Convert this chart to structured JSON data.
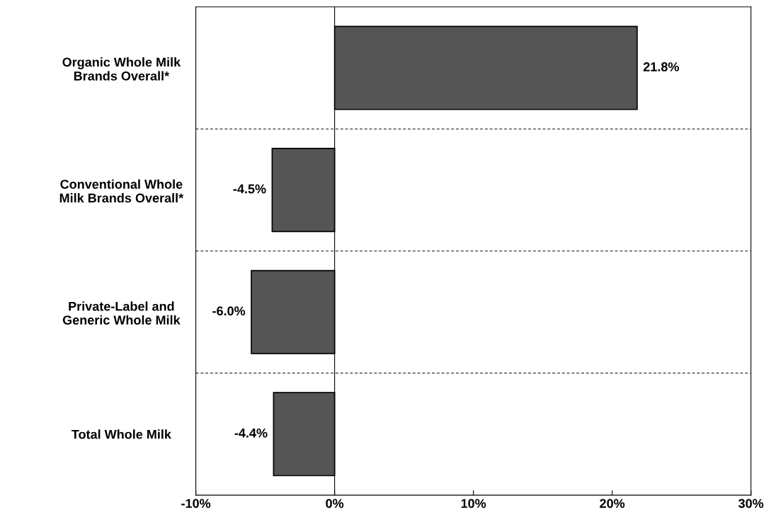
{
  "chart_data": {
    "type": "bar",
    "orientation": "horizontal",
    "categories": [
      "Organic Whole Milk\nBrands Overall*",
      "Conventional Whole\nMilk Brands Overall*",
      "Private-Label and\nGeneric Whole Milk",
      "Total Whole Milk"
    ],
    "values": [
      21.8,
      -4.5,
      -6.0,
      -4.4
    ],
    "value_labels": [
      "21.8%",
      "-4.5%",
      "-6.0%",
      "-4.4%"
    ],
    "color": "#555555",
    "xlim": [
      -10,
      30
    ],
    "xticks": [
      {
        "value": -10,
        "label": "-10%"
      },
      {
        "value": 0,
        "label": "0%"
      },
      {
        "value": 10,
        "label": "10%"
      },
      {
        "value": 20,
        "label": "20%"
      },
      {
        "value": 30,
        "label": "30%"
      }
    ],
    "ref_lines": [
      {
        "axis": "x",
        "value": 0,
        "color": "#000000"
      }
    ],
    "grid": "y",
    "legend": false
  }
}
